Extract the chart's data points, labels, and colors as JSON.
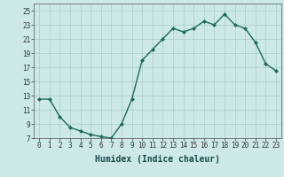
{
  "x": [
    0,
    1,
    2,
    3,
    4,
    5,
    6,
    7,
    8,
    9,
    10,
    11,
    12,
    13,
    14,
    15,
    16,
    17,
    18,
    19,
    20,
    21,
    22,
    23
  ],
  "y": [
    12.5,
    12.5,
    10.0,
    8.5,
    8.0,
    7.5,
    7.2,
    7.0,
    9.0,
    12.5,
    18.0,
    19.5,
    21.0,
    22.5,
    22.0,
    22.5,
    23.5,
    23.0,
    24.5,
    23.0,
    22.5,
    20.5,
    17.5,
    16.5
  ],
  "xlabel": "Humidex (Indice chaleur)",
  "ylim": [
    7,
    26
  ],
  "xlim": [
    -0.5,
    23.5
  ],
  "yticks": [
    7,
    9,
    11,
    13,
    15,
    17,
    19,
    21,
    23,
    25
  ],
  "xticks": [
    0,
    1,
    2,
    3,
    4,
    5,
    6,
    7,
    8,
    9,
    10,
    11,
    12,
    13,
    14,
    15,
    16,
    17,
    18,
    19,
    20,
    21,
    22,
    23
  ],
  "line_color": "#1a6b5a",
  "marker": "D",
  "marker_size": 2.0,
  "bg_color": "#cce8e8",
  "grid_color": "#aacccc",
  "fig_bg": "#cce8e8",
  "tick_fontsize": 5.5,
  "xlabel_fontsize": 7.0
}
